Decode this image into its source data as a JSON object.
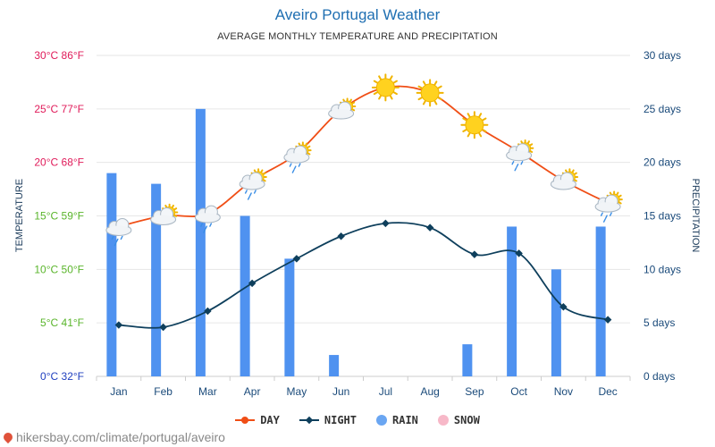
{
  "title": "Aveiro Portugal Weather",
  "subtitle": "AVERAGE MONTHLY TEMPERATURE AND PRECIPITATION",
  "source": "hikersbay.com/climate/portugal/aveiro",
  "legend": {
    "day": "DAY",
    "night": "NIGHT",
    "rain": "RAIN",
    "snow": "SNOW"
  },
  "colors": {
    "day": "#f04e16",
    "night": "#0e3f5c",
    "rain": "#4f92f0",
    "snow": "#f7b8c8",
    "grid": "#e6e6e6"
  },
  "chart_data": {
    "type": "bar",
    "xlabel": "",
    "ylabel_left": "TEMPERATURE",
    "ylabel_right": "PRECIPITATION",
    "categories": [
      "Jan",
      "Feb",
      "Mar",
      "Apr",
      "May",
      "Jun",
      "Jul",
      "Aug",
      "Sep",
      "Oct",
      "Nov",
      "Dec"
    ],
    "y_left": {
      "range": [
        0,
        30
      ],
      "ticks": [
        "0°C 32°F",
        "5°C 41°F",
        "10°C 50°F",
        "15°C 59°F",
        "20°C 68°F",
        "25°C 77°F",
        "30°C 86°F"
      ],
      "tick_colors": [
        "#1f3fbf",
        "#5ab52b",
        "#5ab52b",
        "#5ab52b",
        "#e01b5a",
        "#e01b5a",
        "#e01b5a"
      ]
    },
    "y_right": {
      "range": [
        0,
        30
      ],
      "ticks": [
        "0 days",
        "5 days",
        "10 days",
        "15 days",
        "20 days",
        "25 days",
        "30 days"
      ]
    },
    "grid": true,
    "legend_position": "bottom",
    "series": [
      {
        "name": "DAY",
        "type": "line",
        "axis": "left",
        "values": [
          14.0,
          15.0,
          15.2,
          18.3,
          20.8,
          24.9,
          27.0,
          26.5,
          23.5,
          21.0,
          18.3,
          16.2
        ],
        "weather": [
          "rain-cloud",
          "sun-cloud",
          "rain-cloud",
          "rain-sun-cloud",
          "rain-sun-cloud",
          "sun-cloud",
          "sun",
          "sun",
          "sun",
          "rain-sun-cloud",
          "sun-cloud",
          "rain-sun-cloud"
        ]
      },
      {
        "name": "NIGHT",
        "type": "line",
        "axis": "right",
        "values": [
          4.8,
          4.6,
          6.1,
          8.7,
          11.0,
          13.1,
          14.3,
          13.9,
          11.4,
          11.5,
          6.5,
          5.3
        ]
      },
      {
        "name": "RAIN",
        "type": "bar",
        "axis": "right",
        "values": [
          19,
          18,
          25,
          15,
          11,
          2,
          0,
          0,
          3,
          14,
          10,
          14
        ]
      },
      {
        "name": "SNOW",
        "type": "bar",
        "axis": "right",
        "values": [
          0,
          0,
          0,
          0,
          0,
          0,
          0,
          0,
          0,
          0,
          0,
          0
        ]
      }
    ]
  }
}
